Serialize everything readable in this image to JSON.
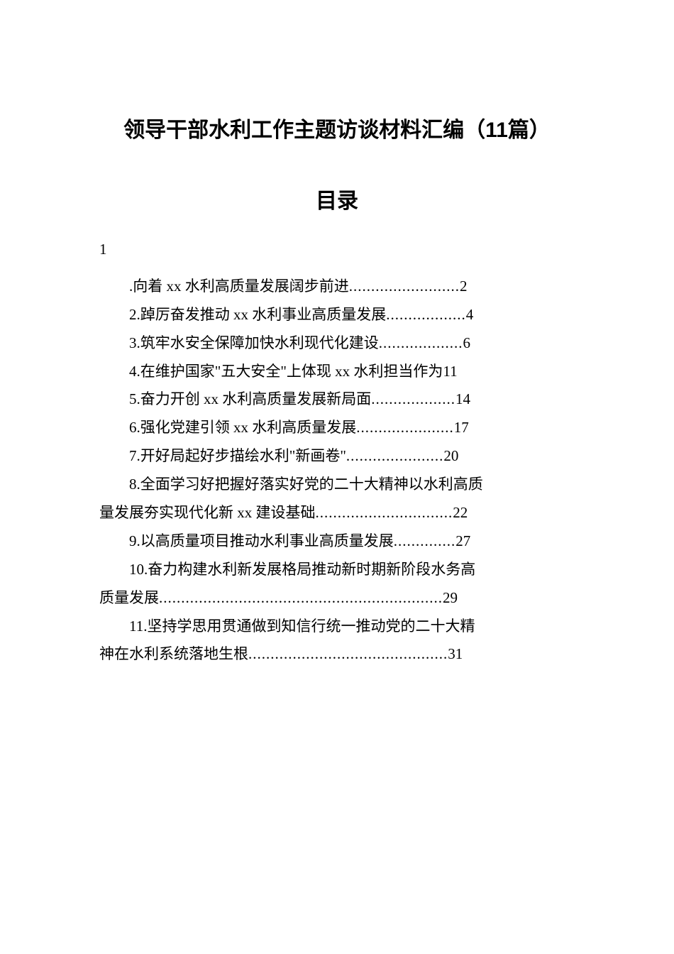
{
  "title": "领导干部水利工作主题访谈材料汇编（11篇）",
  "subtitle": "目录",
  "section_marker": "1",
  "toc": {
    "item1": {
      "text": ".向着 xx 水利高质量发展阔步前进",
      "dots": ".........................",
      "page": "2"
    },
    "item2": {
      "text": "2.踔厉奋发推动 xx 水利事业高质量发展",
      "dots": "..................",
      "page": "4"
    },
    "item3": {
      "text": "3.筑牢水安全保障加快水利现代化建设",
      "dots": "...................",
      "page": "6"
    },
    "item4": {
      "text": "4.在维护国家\"五大安全\"上体现 xx 水利担当作为",
      "dots": "",
      "page": "11"
    },
    "item5": {
      "text": "5.奋力开创 xx 水利高质量发展新局面",
      "dots": "...................",
      "page": "14"
    },
    "item6": {
      "text": "6.强化党建引领 xx 水利高质量发展",
      "dots": "......................",
      "page": "17"
    },
    "item7": {
      "text": "7.开好局起好步描绘水利\"新画卷\"",
      "dots": "......................",
      "page": "20"
    },
    "item8": {
      "text_line1": "8.全面学习好把握好落实好党的二十大精神以水利高质",
      "text_line2": "量发展夯实现代化新 xx 建设基础",
      "dots": "...............................",
      "page": "22"
    },
    "item9": {
      "text": "9.以高质量项目推动水利事业高质量发展",
      "dots": "..............",
      "page": "27"
    },
    "item10": {
      "text_line1": "10.奋力构建水利新发展格局推动新时期新阶段水务高",
      "text_line2": "质量发展",
      "dots": "................................................................",
      "page": "29"
    },
    "item11": {
      "text_line1": "11.坚持学思用贯通做到知信行统一推动党的二十大精",
      "text_line2": "神在水利系统落地生根",
      "dots": ".............................................",
      "page": "31"
    }
  },
  "colors": {
    "background": "#ffffff",
    "text": "#000000"
  },
  "fonts": {
    "title_family": "SimHei",
    "body_family": "SimSun",
    "title_size_pt": 22,
    "body_size_pt": 16
  }
}
